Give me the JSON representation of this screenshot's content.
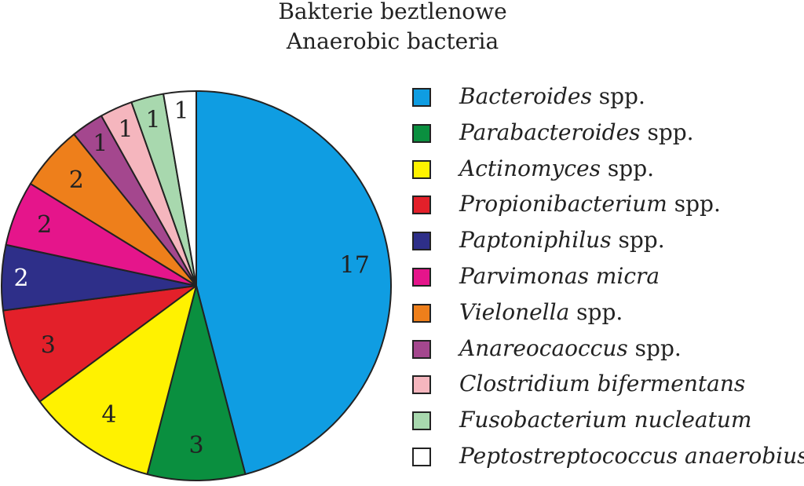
{
  "chart_data": {
    "type": "pie",
    "title": "Bakterie beztlenowe",
    "subtitle": "Anaerobic bacteria",
    "slices": [
      {
        "label_italic": "Bacteroides",
        "label_suffix": " spp.",
        "value": 17,
        "color": "#0f9de2",
        "label_color": "#222222"
      },
      {
        "label_italic": "Parabacteroides",
        "label_suffix": " spp.",
        "value": 3,
        "color": "#0a8f3f",
        "label_color": "#222222"
      },
      {
        "label_italic": "Actinomyces",
        "label_suffix": " spp.",
        "value": 4,
        "color": "#fff200",
        "label_color": "#222222"
      },
      {
        "label_italic": "Propionibacterium",
        "label_suffix": " spp.",
        "value": 3,
        "color": "#e3202a",
        "label_color": "#222222"
      },
      {
        "label_italic": "Paptoniphilus",
        "label_suffix": " spp.",
        "value": 2,
        "color": "#2e2f89",
        "label_color": "#ffffff"
      },
      {
        "label_italic": "Parvimonas micra",
        "label_suffix": "",
        "value": 2,
        "color": "#e5158b",
        "label_color": "#222222"
      },
      {
        "label_italic": "Vielonella",
        "label_suffix": " spp.",
        "value": 2,
        "color": "#ee7f1b",
        "label_color": "#222222"
      },
      {
        "label_italic": "Anareocaoccus",
        "label_suffix": " spp.",
        "value": 1,
        "color": "#a4478e",
        "label_color": "#222222"
      },
      {
        "label_italic": "Clostridium bifermentans",
        "label_suffix": "",
        "value": 1,
        "color": "#f5b6be",
        "label_color": "#222222"
      },
      {
        "label_italic": "Fusobacterium nucleatum",
        "label_suffix": "",
        "value": 1,
        "color": "#a8d8ae",
        "label_color": "#222222"
      },
      {
        "label_italic": "Peptostreptococcus anaerobius",
        "label_suffix": "",
        "value": 1,
        "color": "#ffffff",
        "label_color": "#222222"
      }
    ],
    "legend_position": "right"
  }
}
